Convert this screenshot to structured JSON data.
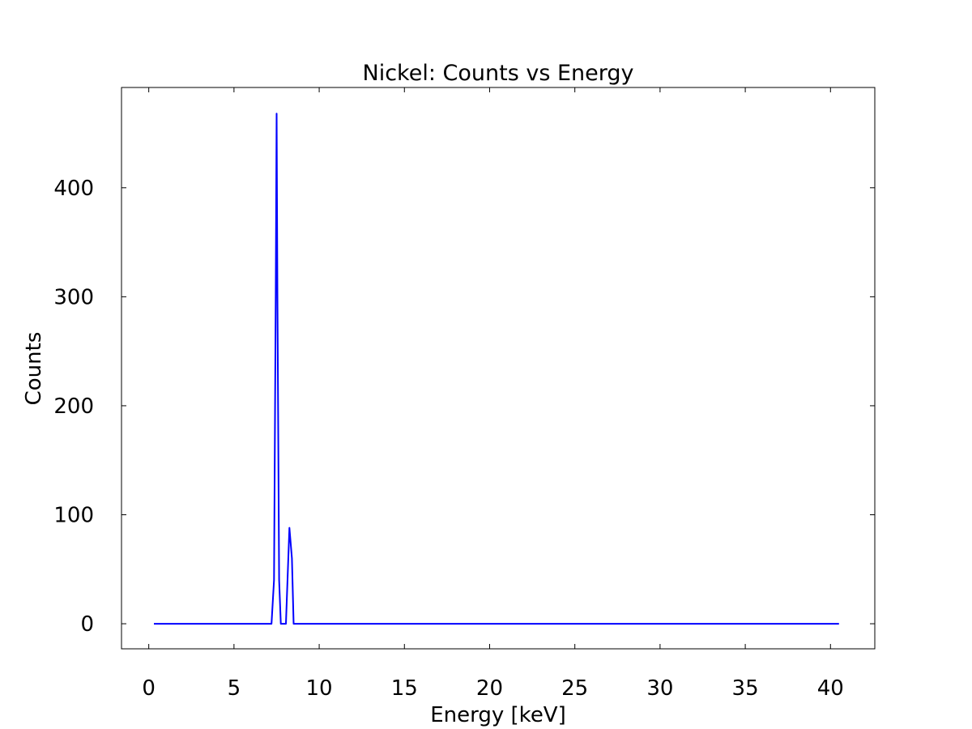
{
  "chart_data": {
    "type": "line",
    "title": "Nickel: Counts vs Energy",
    "xlabel": "Energy [keV]",
    "ylabel": "Counts",
    "xlim": [
      -1.6,
      42.6
    ],
    "ylim": [
      -23,
      492
    ],
    "xticks": [
      0,
      5,
      10,
      15,
      20,
      25,
      30,
      35,
      40
    ],
    "yticks": [
      0,
      100,
      200,
      300,
      400
    ],
    "grid": false,
    "legend": "none",
    "line_color": "#0000ff",
    "series": [
      {
        "x": [
          0.3,
          7.2,
          7.35,
          7.45,
          7.5,
          7.55,
          7.65,
          7.75,
          8.05,
          8.25,
          8.4,
          8.5,
          40.5
        ],
        "y": [
          0,
          0,
          40,
          300,
          468,
          300,
          40,
          0,
          0,
          88,
          60,
          0,
          0
        ]
      }
    ]
  }
}
